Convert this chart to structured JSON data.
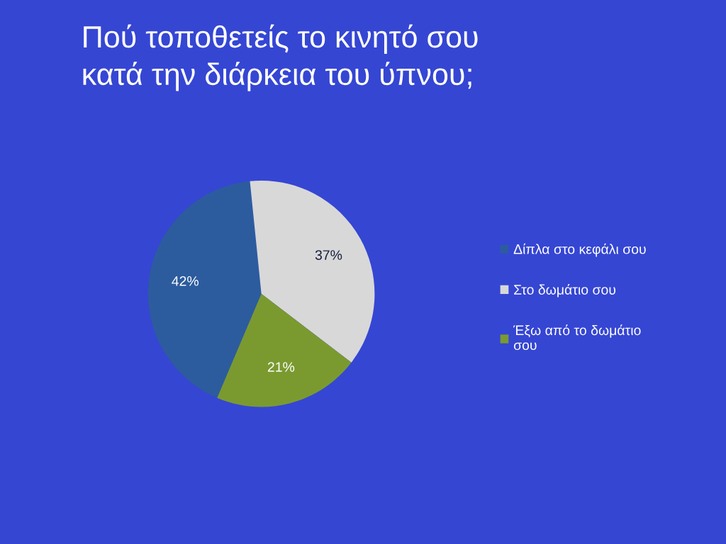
{
  "chart_data": {
    "type": "pie",
    "title": "Πού τοποθετείς το κινητό σου\nκατά την διάρκεια του ύπνου;",
    "categories": [
      "Δίπλα στο κεφάλι σου",
      "Στο δωμάτιο σου",
      "Έξω από το δωμάτιο\nσου"
    ],
    "values": [
      42,
      37,
      21
    ],
    "colors": [
      "#2c5c9e",
      "#d8d8d8",
      "#7a9a30"
    ],
    "value_labels": [
      "42%",
      "37%",
      "21%"
    ],
    "legend": "right"
  }
}
